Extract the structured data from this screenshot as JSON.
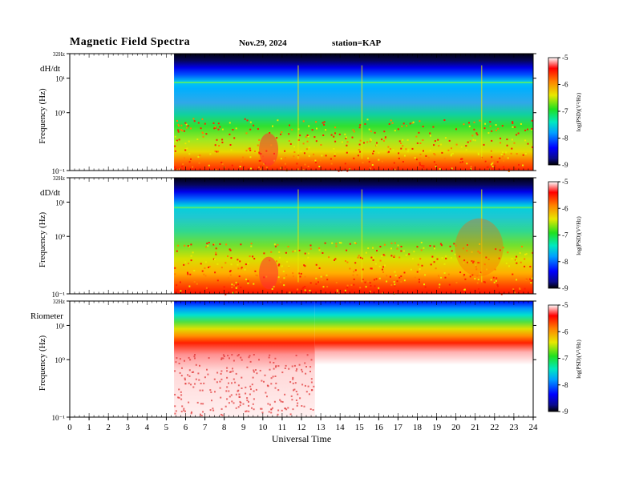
{
  "header": {
    "title": "Magnetic  Field  Spectra",
    "date": "Nov.29, 2024",
    "station": "station=KAP"
  },
  "chart_data": [
    {
      "type": "heatmap",
      "panel_label": "dH/dt",
      "ylabel": "Frequency  (Hz)",
      "xlim": [
        0,
        24
      ],
      "ylim": [
        0.1,
        32
      ],
      "yscale": "log",
      "y_ticks": [
        "10⁻¹",
        "10⁰",
        "10¹",
        "32Hz"
      ],
      "data_start_hour": 5.4,
      "colorbar": {
        "label": "log(PSD)(V²/Hz)",
        "range": [
          -9,
          -5
        ],
        "ticks": [
          "-5",
          "-6",
          "-7",
          "-8",
          "-9"
        ]
      }
    },
    {
      "type": "heatmap",
      "panel_label": "dD/dt",
      "ylabel": "Frequency  (Hz)",
      "xlim": [
        0,
        24
      ],
      "ylim": [
        0.1,
        32
      ],
      "yscale": "log",
      "y_ticks": [
        "10⁻¹",
        "10⁰",
        "10¹",
        "32Hz"
      ],
      "data_start_hour": 5.4,
      "colorbar": {
        "label": "log(PSD)(V²/Hz)",
        "range": [
          -9,
          -5
        ],
        "ticks": [
          "-5",
          "-6",
          "-7",
          "-8",
          "-9"
        ]
      }
    },
    {
      "type": "heatmap",
      "panel_label": "Riometer",
      "ylabel": "Frequency  (Hz)",
      "xlim": [
        0,
        24
      ],
      "ylim": [
        0.1,
        32
      ],
      "yscale": "log",
      "y_ticks": [
        "10⁻¹",
        "10⁰",
        "10¹",
        "32Hz"
      ],
      "data_start_hour": 5.4,
      "colorbar": {
        "label": "log(PSD)(V²/Hz)",
        "range": [
          -9,
          -5
        ],
        "ticks": [
          "-5",
          "-6",
          "-7",
          "-8",
          "-9"
        ]
      }
    }
  ],
  "x_axis": {
    "label": "Universal  Time",
    "ticks": [
      "0",
      "1",
      "2",
      "3",
      "4",
      "5",
      "6",
      "7",
      "8",
      "9",
      "10",
      "11",
      "12",
      "13",
      "14",
      "15",
      "16",
      "17",
      "18",
      "19",
      "20",
      "21",
      "22",
      "23",
      "24"
    ]
  }
}
